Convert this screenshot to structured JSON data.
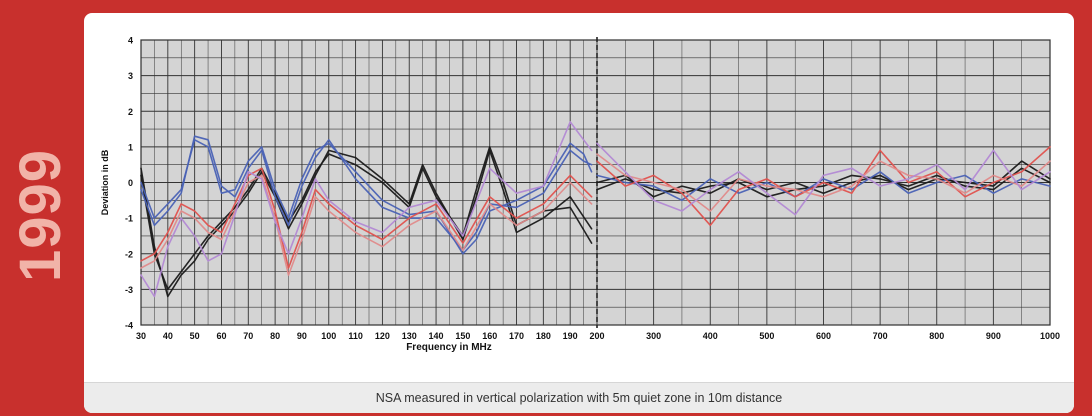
{
  "banner": {
    "year": "1999",
    "caption": "NSA measured in vertical polarization with 5m quiet zone in 10m distance"
  },
  "chart_data": {
    "type": "line",
    "xlabel": "Frequency in MHz",
    "ylabel": "Deviation in dB",
    "ylim": [
      -4,
      4
    ],
    "yticks": [
      "4",
      "3",
      "2",
      "1",
      "0",
      "-1",
      "-2",
      "-3",
      "-4"
    ],
    "xticks": [
      "30",
      "40",
      "50",
      "60",
      "70",
      "80",
      "90",
      "100",
      "110",
      "120",
      "130",
      "140",
      "150",
      "160",
      "170",
      "180",
      "190",
      "200",
      "300",
      "400",
      "500",
      "600",
      "700",
      "800",
      "900",
      "1000"
    ],
    "x_axis_note": "Two segments: 30-200 MHz linear, 200-1000 MHz linear with compressed scale; dashed divider at 200 MHz",
    "grid": true,
    "colors": {
      "plot_bg": "#d4d4d4",
      "grid": "#333333",
      "black": "#1a1a1a",
      "blue": "#4a62b5",
      "red": "#e0524e",
      "pink": "#e08a8a",
      "purple": "#b389d4"
    },
    "series": [
      {
        "color": "black",
        "x": [
          30,
          35,
          40,
          45,
          50,
          55,
          60,
          65,
          70,
          75,
          80,
          85,
          90,
          95,
          100,
          110,
          120,
          130,
          135,
          140,
          150,
          155,
          160,
          165,
          170,
          180,
          190,
          198
        ],
        "y": [
          0.4,
          -1.8,
          -3.2,
          -2.6,
          -2.2,
          -1.6,
          -1.2,
          -0.8,
          -0.3,
          0.3,
          -0.4,
          -1.3,
          -0.6,
          0.2,
          0.9,
          0.7,
          0.1,
          -0.6,
          0.5,
          -0.3,
          -1.6,
          -0.4,
          0.9,
          -0.2,
          -1.4,
          -1.0,
          -0.4,
          -1.3
        ]
      },
      {
        "color": "black",
        "x": [
          30,
          35,
          40,
          45,
          50,
          55,
          60,
          65,
          70,
          75,
          80,
          85,
          90,
          95,
          100,
          110,
          120,
          130,
          135,
          140,
          150,
          155,
          160,
          165,
          170,
          180,
          190,
          198
        ],
        "y": [
          0.2,
          -2.0,
          -3.0,
          -2.5,
          -2.0,
          -1.5,
          -1.1,
          -0.7,
          -0.2,
          0.4,
          -0.3,
          -1.1,
          -0.5,
          0.3,
          0.8,
          0.5,
          0.0,
          -0.7,
          0.4,
          -0.4,
          -1.5,
          -0.2,
          1.0,
          0.0,
          -1.2,
          -0.8,
          -0.7,
          -1.7
        ]
      },
      {
        "color": "blue",
        "x": [
          30,
          35,
          40,
          45,
          50,
          55,
          60,
          65,
          70,
          75,
          80,
          85,
          90,
          95,
          100,
          110,
          120,
          130,
          140,
          150,
          155,
          160,
          170,
          180,
          190,
          195,
          198
        ],
        "y": [
          0.0,
          -1.0,
          -0.6,
          -0.2,
          1.2,
          1.0,
          -0.3,
          -0.2,
          0.6,
          1.0,
          -0.2,
          -1.0,
          0.1,
          0.9,
          1.1,
          0.3,
          -0.5,
          -0.9,
          -0.8,
          -2.0,
          -1.6,
          -0.8,
          -0.5,
          -0.1,
          1.1,
          0.8,
          0.3
        ]
      },
      {
        "color": "blue",
        "x": [
          30,
          35,
          40,
          45,
          50,
          55,
          60,
          65,
          70,
          75,
          80,
          85,
          90,
          95,
          100,
          110,
          120,
          130,
          140,
          150,
          155,
          160,
          170,
          180,
          190,
          195,
          198
        ],
        "y": [
          -0.2,
          -1.2,
          -0.8,
          -0.3,
          1.3,
          1.2,
          -0.1,
          -0.4,
          0.4,
          0.9,
          -0.4,
          -1.2,
          -0.1,
          0.7,
          1.2,
          0.1,
          -0.7,
          -1.0,
          -1.0,
          -1.9,
          -1.4,
          -0.6,
          -0.7,
          -0.3,
          0.9,
          0.6,
          0.5
        ]
      },
      {
        "color": "red",
        "x": [
          30,
          35,
          40,
          45,
          50,
          55,
          60,
          65,
          70,
          75,
          80,
          85,
          90,
          95,
          100,
          110,
          120,
          130,
          140,
          150,
          160,
          170,
          180,
          190,
          198
        ],
        "y": [
          -2.2,
          -2.0,
          -1.4,
          -0.6,
          -0.8,
          -1.2,
          -1.4,
          -0.6,
          0.2,
          0.4,
          -0.8,
          -2.4,
          -1.4,
          -0.2,
          -0.6,
          -1.2,
          -1.6,
          -1.0,
          -0.6,
          -1.7,
          -0.4,
          -1.0,
          -0.6,
          0.2,
          -0.4
        ]
      },
      {
        "color": "pink",
        "x": [
          30,
          35,
          40,
          45,
          50,
          55,
          60,
          65,
          70,
          75,
          80,
          85,
          90,
          95,
          100,
          110,
          120,
          130,
          140,
          150,
          160,
          170,
          180,
          190,
          198
        ],
        "y": [
          -2.4,
          -2.2,
          -1.6,
          -0.8,
          -1.0,
          -1.4,
          -1.6,
          -0.8,
          0.0,
          0.2,
          -1.0,
          -2.6,
          -1.6,
          -0.4,
          -0.8,
          -1.4,
          -1.8,
          -1.2,
          -0.8,
          -1.9,
          -0.6,
          -1.2,
          -0.8,
          0.0,
          -0.6
        ]
      },
      {
        "color": "purple",
        "x": [
          30,
          35,
          40,
          45,
          50,
          55,
          60,
          65,
          70,
          75,
          80,
          85,
          90,
          95,
          100,
          110,
          120,
          130,
          140,
          150,
          160,
          170,
          180,
          190,
          195,
          198
        ],
        "y": [
          -2.6,
          -3.2,
          -1.8,
          -1.0,
          -1.5,
          -2.2,
          -2.0,
          -0.9,
          0.3,
          0.1,
          -1.1,
          -2.0,
          -1.0,
          0.1,
          -0.5,
          -1.1,
          -1.4,
          -0.7,
          -0.5,
          -1.5,
          0.4,
          -0.3,
          -0.1,
          1.7,
          1.2,
          0.9
        ]
      },
      {
        "color": "black",
        "x": [
          200,
          250,
          300,
          350,
          400,
          450,
          500,
          550,
          600,
          650,
          700,
          750,
          800,
          850,
          900,
          950,
          1000
        ],
        "y": [
          -0.2,
          0.1,
          -0.2,
          -0.3,
          -0.1,
          0.0,
          -0.4,
          -0.2,
          -0.1,
          0.2,
          0.1,
          -0.1,
          0.2,
          -0.1,
          -0.2,
          0.4,
          0.0
        ]
      },
      {
        "color": "black",
        "x": [
          200,
          250,
          300,
          350,
          400,
          450,
          500,
          550,
          600,
          650,
          700,
          750,
          800,
          850,
          900,
          950,
          1000
        ],
        "y": [
          0.0,
          0.2,
          -0.4,
          -0.1,
          -0.3,
          0.1,
          -0.2,
          0.0,
          -0.3,
          0.0,
          0.2,
          -0.2,
          0.1,
          0.0,
          -0.1,
          0.6,
          0.1
        ]
      },
      {
        "color": "blue",
        "x": [
          200,
          250,
          300,
          350,
          400,
          450,
          500,
          550,
          600,
          650,
          700,
          750,
          800,
          850,
          900,
          950,
          1000
        ],
        "y": [
          0.2,
          0.0,
          -0.1,
          -0.5,
          0.1,
          -0.3,
          0.0,
          -0.4,
          0.1,
          -0.2,
          0.3,
          -0.3,
          0.0,
          0.2,
          -0.3,
          0.1,
          -0.1
        ]
      },
      {
        "color": "red",
        "x": [
          200,
          250,
          300,
          350,
          400,
          450,
          500,
          550,
          600,
          650,
          700,
          750,
          800,
          850,
          900,
          950,
          1000
        ],
        "y": [
          0.6,
          -0.1,
          0.2,
          -0.3,
          -1.2,
          -0.2,
          0.1,
          -0.4,
          0.0,
          -0.3,
          0.9,
          0.0,
          0.3,
          -0.4,
          0.0,
          0.3,
          1.0
        ]
      },
      {
        "color": "pink",
        "x": [
          200,
          250,
          300,
          350,
          400,
          450,
          500,
          550,
          600,
          650,
          700,
          750,
          800,
          850,
          900,
          950,
          1000
        ],
        "y": [
          0.8,
          0.2,
          0.0,
          -0.2,
          -0.8,
          0.1,
          -0.1,
          -0.2,
          -0.4,
          -0.1,
          0.6,
          0.2,
          0.1,
          -0.3,
          0.2,
          -0.1,
          0.6
        ]
      },
      {
        "color": "purple",
        "x": [
          200,
          250,
          300,
          350,
          400,
          450,
          500,
          550,
          600,
          650,
          700,
          750,
          800,
          850,
          900,
          950,
          1000
        ],
        "y": [
          1.1,
          0.3,
          -0.5,
          -0.8,
          -0.2,
          0.3,
          -0.3,
          -0.9,
          0.2,
          0.4,
          -0.1,
          0.1,
          0.5,
          -0.2,
          0.9,
          -0.2,
          0.3
        ]
      }
    ]
  }
}
